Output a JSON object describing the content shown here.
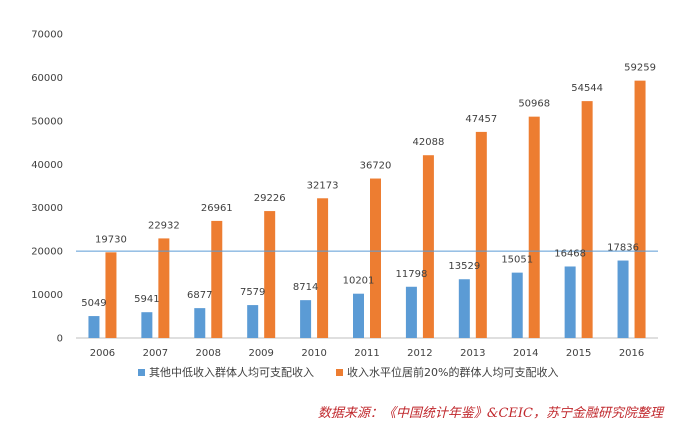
{
  "chart_data": {
    "type": "bar",
    "categories": [
      "2006",
      "2007",
      "2008",
      "2009",
      "2010",
      "2011",
      "2012",
      "2013",
      "2014",
      "2015",
      "2016"
    ],
    "series": [
      {
        "name": "其他中低收入群体人均可支配收入",
        "color": "#5b9bd5",
        "values": [
          5049,
          5941,
          6877,
          7579,
          8714,
          10201,
          11798,
          13529,
          15051,
          16468,
          17836
        ]
      },
      {
        "name": "收入水平位居前20%的群体人均可支配收入",
        "color": "#ed7d31",
        "values": [
          19730,
          22932,
          26961,
          29226,
          32173,
          36720,
          42088,
          47457,
          50968,
          54544,
          59259
        ]
      }
    ],
    "ylim": [
      0,
      70000
    ],
    "yticks": [
      "0",
      "10000",
      "20000",
      "30000",
      "40000",
      "50000",
      "60000",
      "70000"
    ],
    "reference_line": 20000,
    "grid": false,
    "legend_position": "bottom"
  },
  "source_note": {
    "text": "数据来源：《中国统计年鉴》&CEIC，苏宁金融研究院整理",
    "color": "#c0282d"
  }
}
